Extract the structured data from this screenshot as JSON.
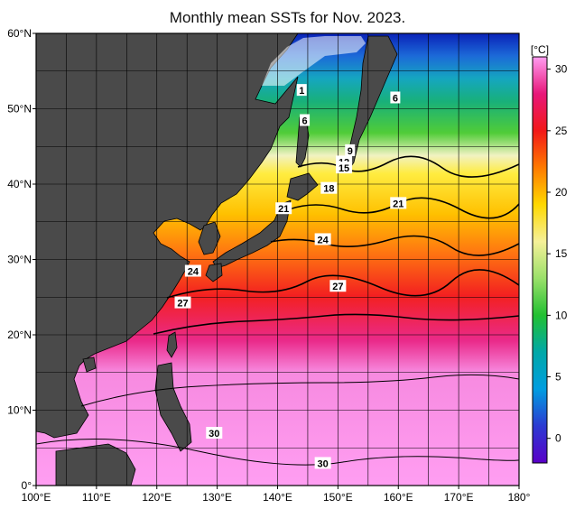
{
  "title": "Monthly mean SSTs for Nov. 2023.",
  "colorbar": {
    "unit_label": "[°C]",
    "ticks": [
      "30",
      "25",
      "20",
      "15",
      "10",
      "5",
      "0"
    ],
    "tick_values": [
      30,
      25,
      20,
      15,
      10,
      5,
      0
    ],
    "range": [
      -2,
      31
    ],
    "stops": [
      "#ff9cf0",
      "#e8177a",
      "#f21818",
      "#ff7a00",
      "#ffd800",
      "#f5f098",
      "#9ae06a",
      "#22c032",
      "#00a8a8",
      "#009de0",
      "#2c3ad2",
      "#5a00c8"
    ]
  },
  "axes": {
    "lat_labels": [
      "60°N",
      "50°N",
      "40°N",
      "30°N",
      "20°N",
      "10°N",
      "0°"
    ],
    "lat_values": [
      60,
      50,
      40,
      30,
      20,
      10,
      0
    ],
    "lon_labels": [
      "100°E",
      "110°E",
      "120°E",
      "130°E",
      "140°E",
      "150°E",
      "160°E",
      "170°E",
      "180°"
    ],
    "lon_values": [
      100,
      110,
      120,
      130,
      140,
      150,
      160,
      170,
      180
    ]
  },
  "contour_labels": [
    {
      "text": "1",
      "lon": 144,
      "lat": 52.5
    },
    {
      "text": "6",
      "lon": 144.5,
      "lat": 48.5
    },
    {
      "text": "6",
      "lon": 159.5,
      "lat": 51.5
    },
    {
      "text": "9",
      "lon": 152,
      "lat": 44.5
    },
    {
      "text": "12",
      "lon": 151,
      "lat": 43
    },
    {
      "text": "15",
      "lon": 151,
      "lat": 42.2
    },
    {
      "text": "18",
      "lon": 148.5,
      "lat": 39.5
    },
    {
      "text": "21",
      "lon": 160,
      "lat": 37.5
    },
    {
      "text": "21",
      "lon": 141,
      "lat": 36.8
    },
    {
      "text": "24",
      "lon": 147.5,
      "lat": 32.7
    },
    {
      "text": "24",
      "lon": 126,
      "lat": 28.5
    },
    {
      "text": "27",
      "lon": 150,
      "lat": 26.5
    },
    {
      "text": "27",
      "lon": 124.3,
      "lat": 24.3
    },
    {
      "text": "30",
      "lon": 129.5,
      "lat": 7
    },
    {
      "text": "30",
      "lon": 147.5,
      "lat": 3
    }
  ],
  "colors": {
    "land": "#4a4a4a",
    "coast": "#000000",
    "frame": "#000000"
  }
}
